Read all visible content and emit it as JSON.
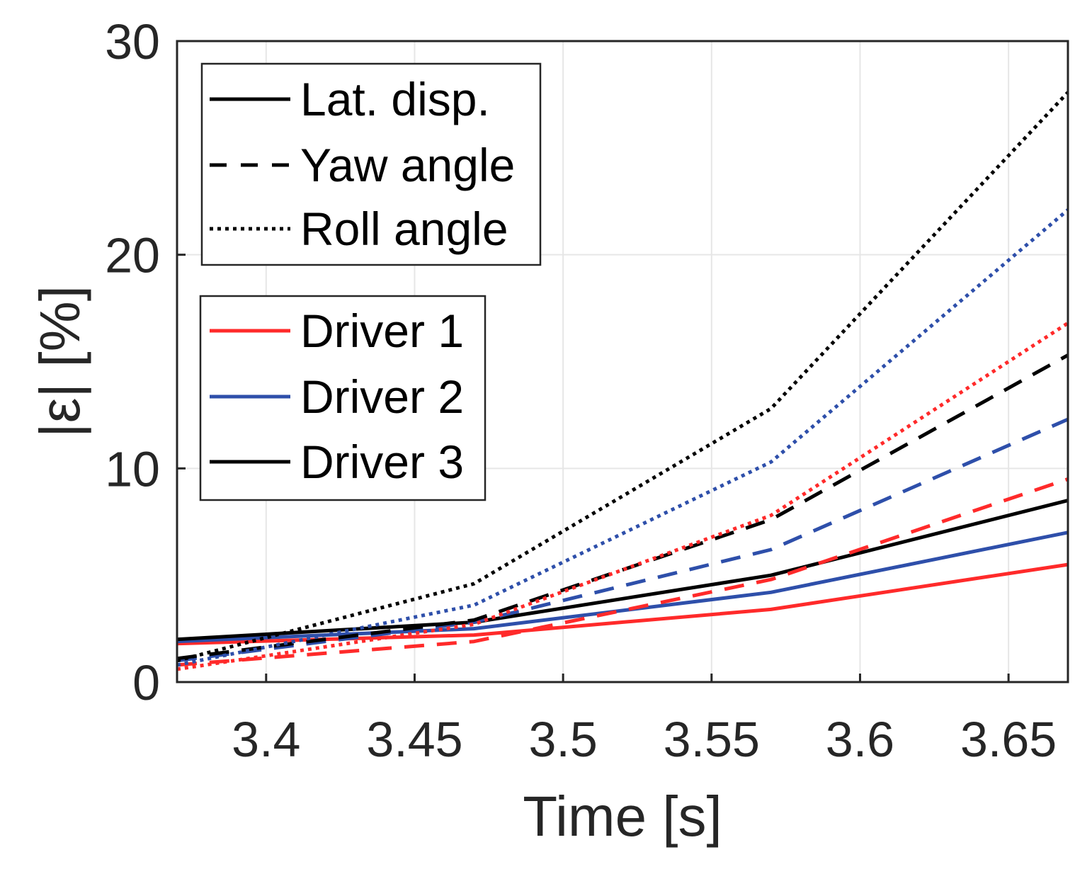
{
  "chart_data": {
    "type": "line",
    "xlabel": "Time [s]",
    "ylabel": "|ε| [%]",
    "xlim": [
      3.37,
      3.67
    ],
    "ylim": [
      0,
      30
    ],
    "xticks": [
      "3.4",
      "3.45",
      "3.5",
      "3.55",
      "3.6",
      "3.65"
    ],
    "yticks": [
      "0",
      "10",
      "20",
      "30"
    ],
    "grid": true,
    "x": [
      3.37,
      3.47,
      3.57,
      3.67
    ],
    "legend_style": {
      "position": "top-left",
      "entries": [
        {
          "label": "Lat. disp.",
          "dash": "solid"
        },
        {
          "label": "Yaw angle",
          "dash": "dashed"
        },
        {
          "label": "Roll angle",
          "dash": "dotted"
        }
      ]
    },
    "legend_driver": {
      "position": "upper-left",
      "entries": [
        {
          "label": "Driver 1",
          "color": "#ff2a2a"
        },
        {
          "label": "Driver 2",
          "color": "#2e4faa"
        },
        {
          "label": "Driver 3",
          "color": "#000000"
        }
      ]
    },
    "series": [
      {
        "name": "Driver 1 - Lat. disp.",
        "driver": "Driver 1",
        "measure": "Lat. disp.",
        "dash": "solid",
        "color": "#ff2a2a",
        "values": [
          1.8,
          2.2,
          3.4,
          5.5
        ]
      },
      {
        "name": "Driver 2 - Lat. disp.",
        "driver": "Driver 2",
        "measure": "Lat. disp.",
        "dash": "solid",
        "color": "#2e4faa",
        "values": [
          1.9,
          2.5,
          4.2,
          7.0
        ]
      },
      {
        "name": "Driver 3 - Lat. disp.",
        "driver": "Driver 3",
        "measure": "Lat. disp.",
        "dash": "solid",
        "color": "#000000",
        "values": [
          2.0,
          2.8,
          5.0,
          8.5
        ]
      },
      {
        "name": "Driver 1 - Yaw angle",
        "driver": "Driver 1",
        "measure": "Yaw angle",
        "dash": "dashed",
        "color": "#ff2a2a",
        "values": [
          0.8,
          1.9,
          4.8,
          9.5
        ]
      },
      {
        "name": "Driver 2 - Yaw angle",
        "driver": "Driver 2",
        "measure": "Yaw angle",
        "dash": "dashed",
        "color": "#2e4faa",
        "values": [
          1.0,
          2.8,
          6.2,
          12.3
        ]
      },
      {
        "name": "Driver 3 - Yaw angle",
        "driver": "Driver 3",
        "measure": "Yaw angle",
        "dash": "dashed",
        "color": "#000000",
        "values": [
          1.1,
          2.9,
          7.6,
          15.3
        ]
      },
      {
        "name": "Driver 1 - Roll angle",
        "driver": "Driver 1",
        "measure": "Roll angle",
        "dash": "dotted",
        "color": "#ff2a2a",
        "values": [
          0.6,
          2.7,
          7.8,
          16.8
        ]
      },
      {
        "name": "Driver 2 - Roll angle",
        "driver": "Driver 2",
        "measure": "Roll angle",
        "dash": "dotted",
        "color": "#2e4faa",
        "values": [
          0.8,
          3.6,
          10.3,
          22.1
        ]
      },
      {
        "name": "Driver 3 - Roll angle",
        "driver": "Driver 3",
        "measure": "Roll angle",
        "dash": "dotted",
        "color": "#000000",
        "values": [
          1.0,
          4.6,
          12.8,
          27.6
        ]
      }
    ]
  }
}
